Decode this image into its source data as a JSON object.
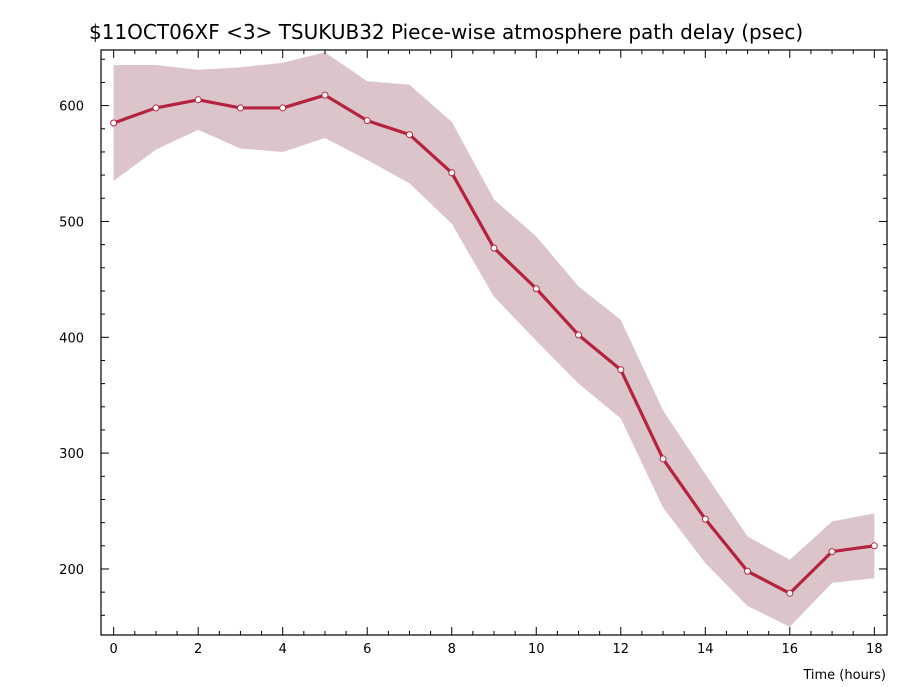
{
  "chart_data": {
    "type": "line",
    "title": "$11OCT06XF <3>  TSUKUB32  Piece-wise atmosphere path delay (psec)",
    "xlabel": "Time (hours)",
    "ylabel": "",
    "xlim": [
      -0.3,
      18.3
    ],
    "ylim": [
      143,
      648
    ],
    "x_ticks": [
      0,
      2,
      4,
      6,
      8,
      10,
      12,
      14,
      16,
      18
    ],
    "y_ticks": [
      200,
      300,
      400,
      500,
      600
    ],
    "x_minor_step": 0.5,
    "y_minor_step": 20,
    "grid": false,
    "colors": {
      "line": "#b5233f",
      "band": "#dcc5ca",
      "marker_fill": "#ffffff"
    },
    "series": [
      {
        "x": [
          0,
          1,
          2,
          3,
          4,
          5,
          6,
          7,
          8,
          9,
          10,
          11,
          12,
          13,
          14,
          15,
          16,
          17,
          18
        ],
        "values": [
          585,
          598,
          605,
          598,
          598,
          609,
          587,
          575,
          542,
          477,
          442,
          402,
          372,
          295,
          243,
          198,
          179,
          215,
          220
        ],
        "lower": [
          535,
          562,
          579,
          563,
          560,
          572,
          553,
          533,
          498,
          435,
          397,
          360,
          330,
          253,
          205,
          168,
          150,
          188,
          192
        ],
        "upper": [
          635,
          635,
          631,
          633,
          637,
          646,
          621,
          618,
          586,
          519,
          487,
          444,
          415,
          337,
          282,
          228,
          208,
          241,
          248
        ]
      }
    ]
  }
}
